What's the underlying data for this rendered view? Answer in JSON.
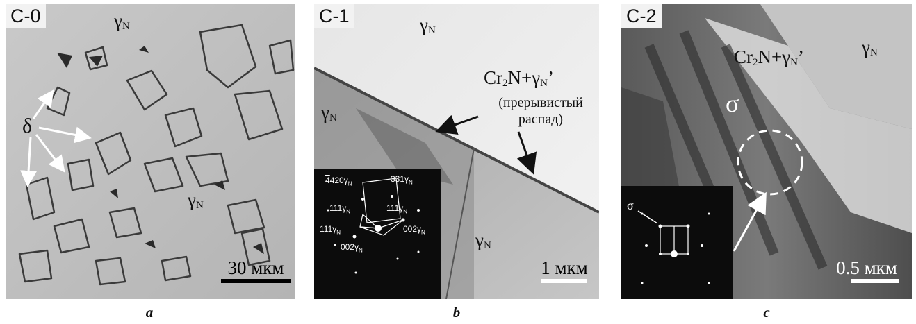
{
  "panel_a": {
    "tag": "C-0",
    "gamma_top": "γ",
    "gamma_bottom": "γ",
    "gamma_sub": "N",
    "delta": "δ",
    "scale": "30 мкм"
  },
  "panel_b": {
    "tag": "C-1",
    "gamma_top": "γ",
    "gamma_left": "γ",
    "gamma_bottom": "γ",
    "gamma_sub": "N",
    "phase_cr": "Cr",
    "phase_cr_sub": "2",
    "phase_n": "N+γ",
    "phase_n_sub": "N",
    "phase_prime": "’",
    "note_line1": "(прерывистый",
    "note_line2": "распад)",
    "scale": "1 мкм",
    "saed": {
      "i420": "420γ",
      "i331": "331γ",
      "i111a": "111γ",
      "i111b": "111γ",
      "i111c": "111γ",
      "i002a": "002γ",
      "i002b": "002γ",
      "sub": "N"
    }
  },
  "panel_c": {
    "tag": "C-2",
    "gamma": "γ",
    "gamma_sub": "N",
    "phase_cr": "Cr",
    "phase_cr_sub": "2",
    "phase_n": "N+γ",
    "phase_n_sub": "N",
    "phase_prime": "’",
    "sigma": "σ",
    "saed_sigma": "σ",
    "scale": "0.5 мкм"
  },
  "captions": {
    "a": "a",
    "b": "b",
    "c": "c"
  }
}
